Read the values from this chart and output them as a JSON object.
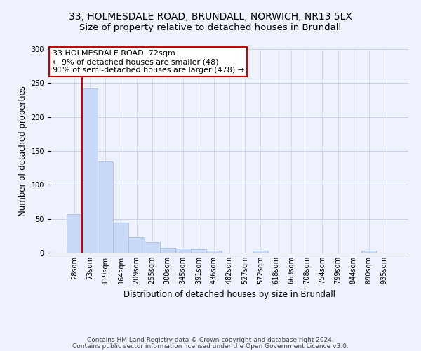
{
  "title_line1": "33, HOLMESDALE ROAD, BRUNDALL, NORWICH, NR13 5LX",
  "title_line2": "Size of property relative to detached houses in Brundall",
  "xlabel": "Distribution of detached houses by size in Brundall",
  "ylabel": "Number of detached properties",
  "categories": [
    "28sqm",
    "73sqm",
    "119sqm",
    "164sqm",
    "209sqm",
    "255sqm",
    "300sqm",
    "345sqm",
    "391sqm",
    "436sqm",
    "482sqm",
    "527sqm",
    "572sqm",
    "618sqm",
    "663sqm",
    "708sqm",
    "754sqm",
    "799sqm",
    "844sqm",
    "890sqm",
    "935sqm"
  ],
  "values": [
    57,
    242,
    134,
    44,
    23,
    16,
    7,
    6,
    5,
    3,
    0,
    0,
    3,
    0,
    0,
    0,
    0,
    0,
    0,
    3,
    0
  ],
  "bar_color": "#c9daf8",
  "bar_edge_color": "#a4b8d4",
  "grid_color": "#c8d0e8",
  "annotation_box_text": "33 HOLMESDALE ROAD: 72sqm\n← 9% of detached houses are smaller (48)\n91% of semi-detached houses are larger (478) →",
  "vline_x": 0.5,
  "vline_color": "#cc0000",
  "box_edge_color": "#cc0000",
  "footer_line1": "Contains HM Land Registry data © Crown copyright and database right 2024.",
  "footer_line2": "Contains public sector information licensed under the Open Government Licence v3.0.",
  "background_color": "#eef2fc",
  "plot_bg_color": "#eef2fc",
  "ylim": [
    0,
    300
  ],
  "title_fontsize": 10,
  "subtitle_fontsize": 9.5,
  "tick_fontsize": 7,
  "ylabel_fontsize": 8.5,
  "xlabel_fontsize": 8.5,
  "annotation_fontsize": 8,
  "footer_fontsize": 6.5
}
